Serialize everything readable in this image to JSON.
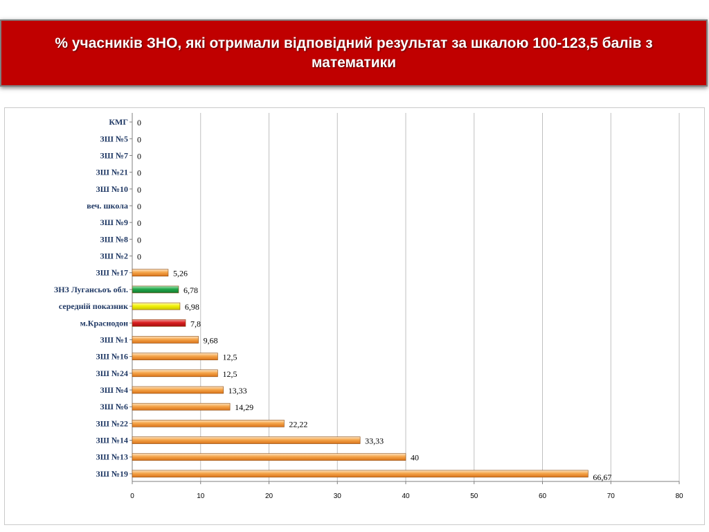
{
  "slide": {
    "title": "% учасників ЗНО, які отримали відповідний результат за шкалою 100-123,5 балів з математики"
  },
  "colors": {
    "banner": "#c00000",
    "bar_default": "#f29b3a",
    "bar_green": "#22a84a",
    "bar_yellow": "#f2f20a",
    "bar_red": "#d91f1f",
    "grid": "#bfbfbf",
    "category_text": "#1f3864"
  },
  "chart_data": {
    "type": "bar",
    "orientation": "horizontal",
    "title": "",
    "xlabel": "",
    "ylabel": "",
    "xlim": [
      0,
      80
    ],
    "x_ticks": [
      "0",
      "10",
      "20",
      "30",
      "40",
      "50",
      "60",
      "70",
      "80"
    ],
    "grid": true,
    "legend": "none",
    "categories": [
      "КМГ",
      "ЗШ №5",
      "ЗШ №7",
      "ЗШ №21",
      "ЗШ №10",
      "веч. школа",
      "ЗШ №9",
      "ЗШ №8",
      "ЗШ №2",
      "ЗШ №17",
      "ЗНЗ Лугансьоъ обл.",
      "середній показник",
      "м.Краснодон",
      "ЗШ №1",
      "ЗШ №16",
      "ЗШ №24",
      "ЗШ №4",
      "ЗШ №6",
      "ЗШ №22",
      "ЗШ №14",
      "ЗШ №13",
      "ЗШ №19"
    ],
    "values": [
      0,
      0,
      0,
      0,
      0,
      0,
      0,
      0,
      0,
      5.26,
      6.78,
      6.98,
      7.8,
      9.68,
      12.5,
      12.5,
      13.33,
      14.29,
      22.22,
      33.33,
      40,
      66.67
    ],
    "value_labels": [
      "0",
      "0",
      "0",
      "0",
      "0",
      "0",
      "0",
      "0",
      "0",
      "5,26",
      "6,78",
      "6,98",
      "7,8",
      "9,68",
      "12,5",
      "12,5",
      "13,33",
      "14,29",
      "22,22",
      "33,33",
      "40",
      "66,67"
    ],
    "bar_colors": [
      "default",
      "default",
      "default",
      "default",
      "default",
      "default",
      "default",
      "default",
      "default",
      "default",
      "green",
      "yellow",
      "red",
      "default",
      "default",
      "default",
      "default",
      "default",
      "default",
      "default",
      "default",
      "default"
    ]
  }
}
